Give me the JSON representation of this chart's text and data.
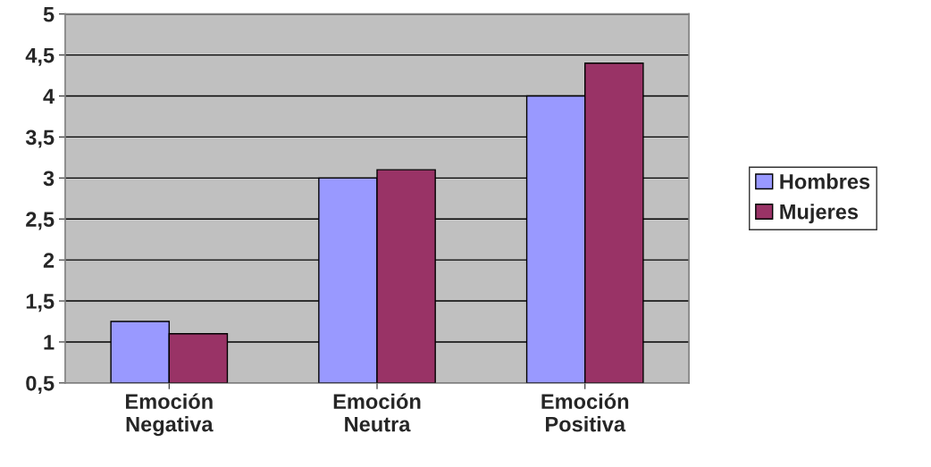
{
  "chart_data": {
    "type": "bar",
    "categories": [
      "Emoción\nNegativa",
      "Emoción\nNeutra",
      "Emoción\nPositiva"
    ],
    "series": [
      {
        "name": "Hombres",
        "color": "#9999ff",
        "values": [
          1.25,
          3,
          4
        ]
      },
      {
        "name": "Mujeres",
        "color": "#993366",
        "values": [
          1.1,
          3.1,
          4.4
        ]
      }
    ],
    "ylim": [
      0.5,
      5
    ],
    "yticks": [
      {
        "value": 0.5,
        "label": "0,5"
      },
      1,
      {
        "value": 1.5,
        "label": "1,5"
      },
      2,
      {
        "value": 2.5,
        "label": "2,5"
      },
      3,
      {
        "value": 3.5,
        "label": "3,5"
      },
      4,
      {
        "value": 4.5,
        "label": "4,5"
      },
      5
    ],
    "grid": "y",
    "legend": "right"
  }
}
